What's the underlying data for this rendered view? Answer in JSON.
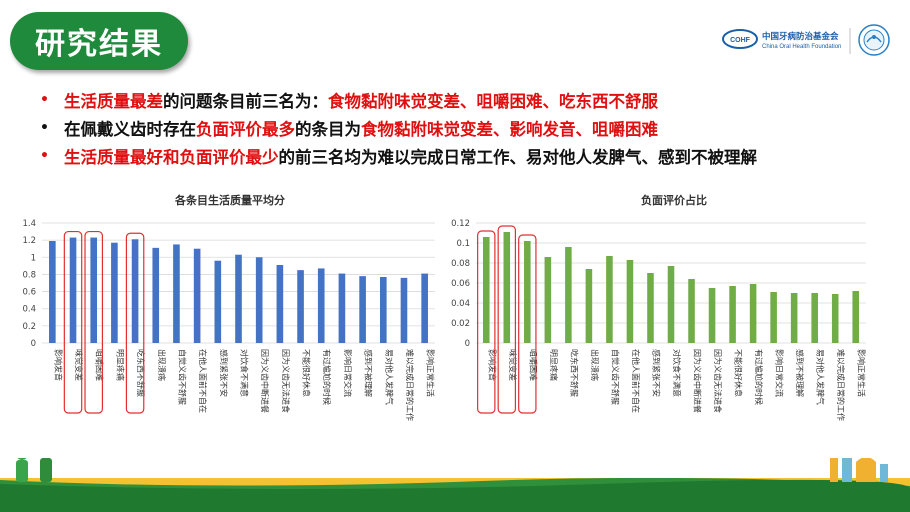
{
  "page": {
    "title": "研究结果",
    "logo_cn": "中国牙病防治基金会",
    "logo_en": "China Oral Health Foundation",
    "logo_badge": "COHF"
  },
  "bullets": [
    {
      "bullet_color": "#e01010",
      "segments": [
        {
          "text": "生活质量最差",
          "red": true
        },
        {
          "text": "的问题条目前三名为：",
          "red": false
        },
        {
          "text": "食物黏附味觉变差、咀嚼困难、吃东西不舒服",
          "red": true
        }
      ]
    },
    {
      "bullet_color": "#111111",
      "segments": [
        {
          "text": "在佩戴义齿时存在",
          "red": false
        },
        {
          "text": "负面评价最多",
          "red": true
        },
        {
          "text": "的条目为",
          "red": false
        },
        {
          "text": "食物黏附味觉变差、影响发音、咀嚼困难",
          "red": true
        }
      ]
    },
    {
      "bullet_color": "#e01010",
      "segments": [
        {
          "text": "生活质量最好和负面评价最少",
          "red": true
        },
        {
          "text": "的前三名均为难以完成日常工作、易对他人发脾气、感到不被理解",
          "red": false
        }
      ]
    }
  ],
  "chart_data": [
    {
      "type": "bar",
      "title": "各条目生活质量平均分",
      "color": "#4472c4",
      "highlight_color": "#e03030",
      "ylim": [
        0,
        1.4
      ],
      "yticks": [
        "0",
        "0.2",
        "0.4",
        "0.6",
        "0.8",
        "1",
        "1.2",
        "1.4"
      ],
      "categories": [
        "影响发音",
        "味觉变差",
        "咀嚼困难",
        "明显疼痛",
        "吃东西不舒服",
        "出现溃疡",
        "自觉义齿不舒服",
        "在他人面前不自在",
        "感到紧张不安",
        "对饮食不满意",
        "因为义齿中断进餐",
        "因为义齿无法进食",
        "不能很好休息",
        "有过尴尬的时候",
        "影响日常交流",
        "感到不被理解",
        "易对他人发脾气",
        "难以完成日常的工作",
        "影响正常生活"
      ],
      "values": [
        1.19,
        1.23,
        1.23,
        1.17,
        1.21,
        1.11,
        1.15,
        1.1,
        0.96,
        1.03,
        1.0,
        0.91,
        0.85,
        0.87,
        0.81,
        0.78,
        0.77,
        0.76,
        0.81
      ],
      "highlighted": [
        1,
        2,
        4
      ]
    },
    {
      "type": "bar",
      "title": "负面评价占比",
      "color": "#70ad47",
      "highlight_color": "#e03030",
      "ylim": [
        0,
        0.12
      ],
      "yticks": [
        "0",
        "0.02",
        "0.04",
        "0.06",
        "0.08",
        "0.1",
        "0.12"
      ],
      "categories": [
        "影响发音",
        "味觉变差",
        "咀嚼困难",
        "明显疼痛",
        "吃东西不舒服",
        "出现溃疡",
        "自觉义齿不舒服",
        "在他人面前不自在",
        "感到紧张不安",
        "对饮食不满意",
        "因为义齿中断进餐",
        "因为义齿无法进食",
        "不能很好休息",
        "有过尴尬的时候",
        "影响日常交流",
        "感到不被理解",
        "易对他人发脾气",
        "难以完成日常的工作",
        "影响正常生活"
      ],
      "values": [
        0.106,
        0.111,
        0.102,
        0.086,
        0.096,
        0.074,
        0.087,
        0.083,
        0.07,
        0.077,
        0.064,
        0.055,
        0.057,
        0.059,
        0.051,
        0.05,
        0.05,
        0.049,
        0.052
      ],
      "highlighted": [
        0,
        1,
        2
      ]
    }
  ]
}
